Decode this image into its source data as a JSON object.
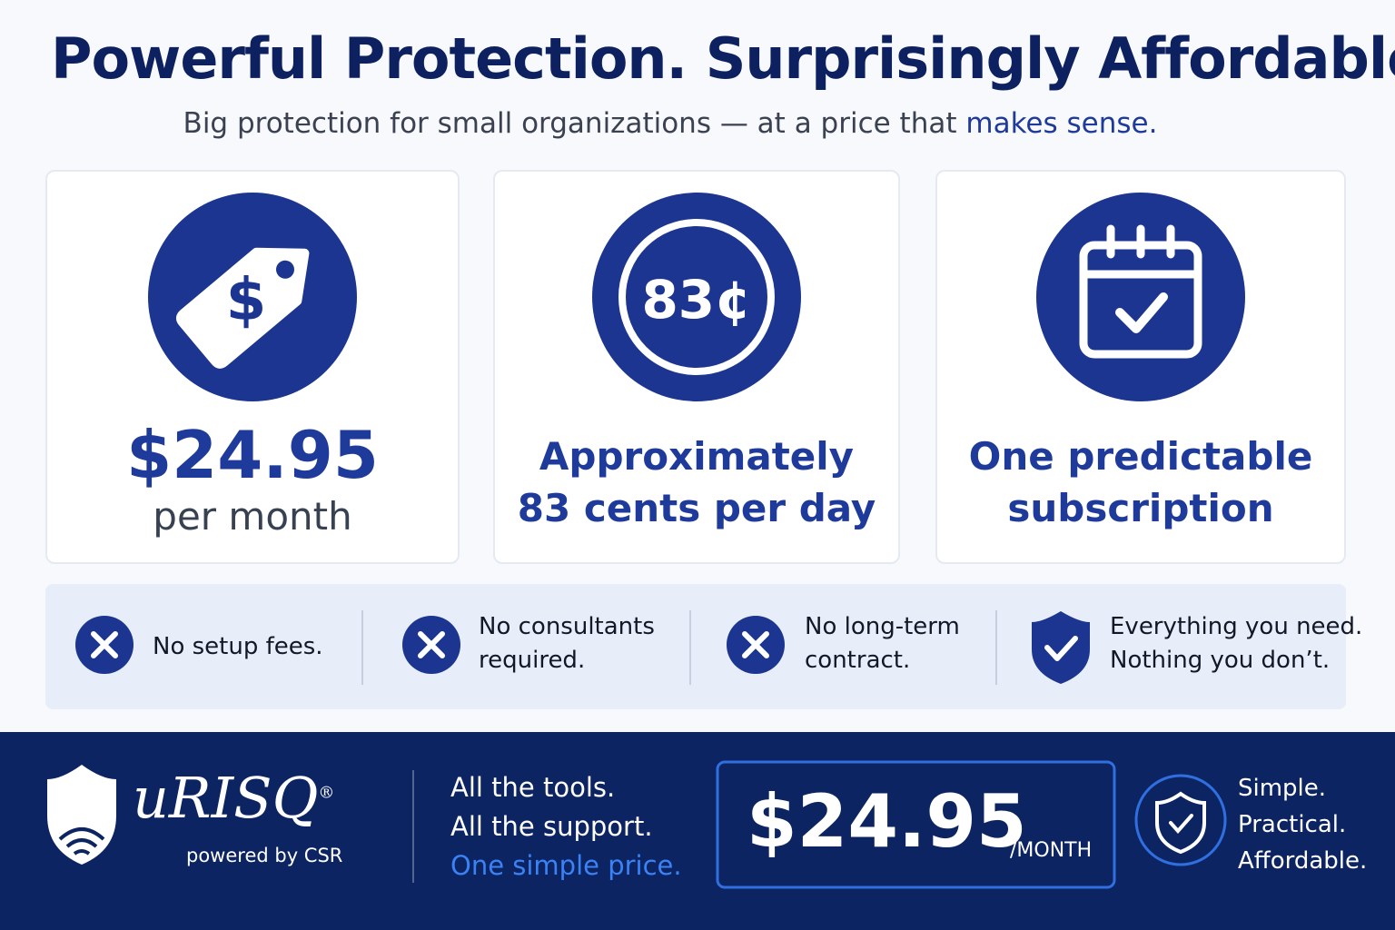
{
  "header": {
    "title": "Powerful Protection. Surprisingly Affordable.",
    "subtitle": "Big protection for small organizations — at a price that",
    "subtitle_highlight": "makes sense."
  },
  "cards": [
    {
      "icon_text": "$",
      "lines": [
        "$24.95"
      ],
      "caption": "per month"
    },
    {
      "icon_text": "83¢",
      "lines": [
        "Approximately",
        "83 cents per day"
      ]
    },
    {
      "lines": [
        "One predictable",
        "subscription"
      ]
    }
  ],
  "features": [
    {
      "lines": [
        "No setup fees."
      ]
    },
    {
      "lines": [
        "No consultants",
        "required."
      ]
    },
    {
      "lines": [
        "No long-term",
        "contract."
      ]
    },
    {
      "lines": [
        "Everything you need.",
        "Nothing you don’t."
      ]
    }
  ],
  "footer": {
    "brand": "uRISQ",
    "registered": "®",
    "powered_by": "powered by CSR",
    "taglines": [
      "All the tools.",
      "All the support.",
      "One simple price."
    ],
    "price": "$24.95",
    "price_unit": "/MONTH",
    "values": [
      "Simple.",
      "Practical.",
      "Affordable."
    ]
  }
}
